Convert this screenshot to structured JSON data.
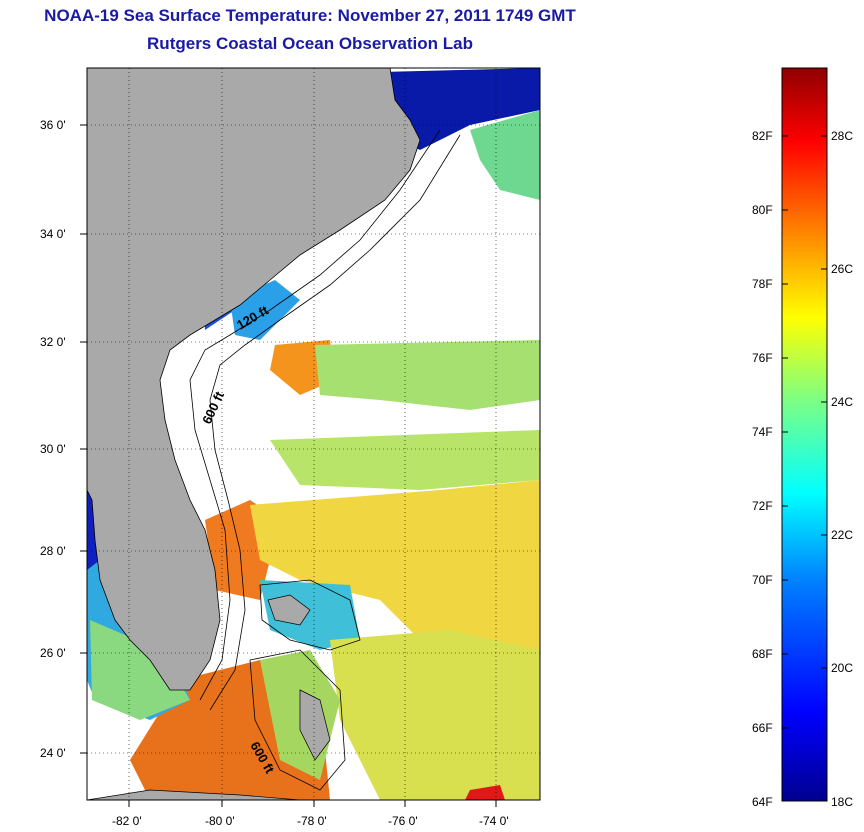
{
  "header": {
    "title": "NOAA-19 Sea Surface Temperature:  November 27, 2011 1749 GMT",
    "subtitle": "Rutgers Coastal Ocean Observation Lab"
  },
  "map": {
    "lat_labels": [
      "36 0'",
      "34 0'",
      "32 0'",
      "30 0'",
      "28 0'",
      "26 0'",
      "24 0'"
    ],
    "lon_labels": [
      "-82 0'",
      "-80 0'",
      "-78 0'",
      "-76 0'",
      "-74 0'"
    ],
    "contour_labels": [
      "120 ft",
      "600 ft",
      "600 ft"
    ],
    "colors": {
      "land": "#a9a9a9",
      "cloud": "#ffffff",
      "coast": "#000000"
    }
  },
  "colorbar": {
    "fahrenheit_labels": [
      "82F",
      "80F",
      "78F",
      "76F",
      "74F",
      "72F",
      "70F",
      "68F",
      "66F",
      "64F"
    ],
    "celsius_labels": [
      "28C",
      "26C",
      "24C",
      "22C",
      "20C",
      "18C"
    ],
    "stops": [
      "#00008f",
      "#0000ff",
      "#0080ff",
      "#00ffff",
      "#80ff80",
      "#ffff00",
      "#ff8000",
      "#ff0000",
      "#8f0000"
    ]
  }
}
